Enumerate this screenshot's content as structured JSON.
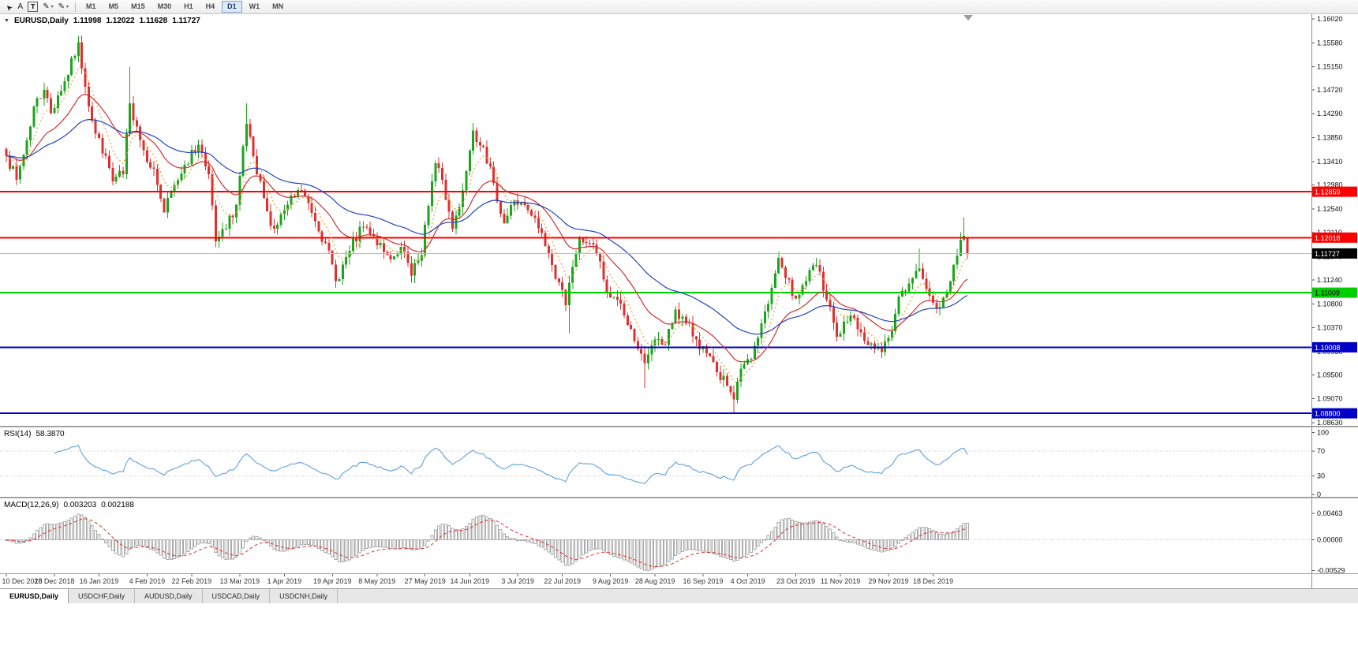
{
  "toolbar": {
    "tools": [
      {
        "name": "cursor-tool-icon",
        "glyph": "➤",
        "rotate": -135
      },
      {
        "name": "text-label-tool-icon",
        "glyph": "A"
      },
      {
        "name": "text-box-tool-icon",
        "glyph": "T",
        "boxed": true
      },
      {
        "name": "draw-tool-icon",
        "glyph": "✎",
        "caret": "▾"
      },
      {
        "name": "paint-tool-icon",
        "glyph": "✎",
        "caret": "▾"
      }
    ],
    "timeframes": [
      {
        "label": "M1"
      },
      {
        "label": "M5"
      },
      {
        "label": "M15"
      },
      {
        "label": "M30"
      },
      {
        "label": "H1"
      },
      {
        "label": "H4"
      },
      {
        "label": "D1",
        "active": true
      },
      {
        "label": "W1"
      },
      {
        "label": "MN"
      }
    ]
  },
  "chart": {
    "dropdown_icon": "▼",
    "symbol": "EURUSD,Daily",
    "open": "1.11998",
    "high": "1.12022",
    "low": "1.11628",
    "close": "1.11727"
  },
  "chart_data": {
    "type": "candlestick",
    "symbol": "EURUSD",
    "period": "Daily",
    "num_candles": 281,
    "first_candle_x": 8,
    "candle_spacing_px": 4.35,
    "seed": 7,
    "ylim": [
      1.0857,
      1.1611
    ],
    "y_ticks": [
      "1.16020",
      "1.15580",
      "1.15150",
      "1.14720",
      "1.14290",
      "1.13850",
      "1.13410",
      "1.12980",
      "1.12540",
      "1.12110",
      "1.11670",
      "1.11240",
      "1.10800",
      "1.10370",
      "1.09930",
      "1.09500",
      "1.09070",
      "1.08630"
    ],
    "colors": {
      "up": "#1CA41C",
      "down": "#DF3030",
      "axis_text": "#111111"
    },
    "last_candle": {
      "open": 1.11998,
      "high": 1.12022,
      "low": 1.11628,
      "close": 1.11727
    },
    "close_waypoints": [
      [
        0,
        1.1352
      ],
      [
        3,
        1.1308
      ],
      [
        6,
        1.138
      ],
      [
        8,
        1.1442
      ],
      [
        11,
        1.1472
      ],
      [
        13,
        1.143
      ],
      [
        15,
        1.1462
      ],
      [
        18,
        1.15
      ],
      [
        21,
        1.156
      ],
      [
        23,
        1.1478
      ],
      [
        26,
        1.1392
      ],
      [
        29,
        1.1352
      ],
      [
        31,
        1.1305
      ],
      [
        34,
        1.1318
      ],
      [
        36,
        1.1448
      ],
      [
        38,
        1.1405
      ],
      [
        40,
        1.1362
      ],
      [
        43,
        1.1328
      ],
      [
        46,
        1.1248
      ],
      [
        49,
        1.1298
      ],
      [
        52,
        1.1335
      ],
      [
        56,
        1.1372
      ],
      [
        59,
        1.1318
      ],
      [
        61,
        1.1195
      ],
      [
        64,
        1.1218
      ],
      [
        67,
        1.1262
      ],
      [
        70,
        1.141
      ],
      [
        73,
        1.1318
      ],
      [
        76,
        1.125
      ],
      [
        78,
        1.1218
      ],
      [
        82,
        1.1262
      ],
      [
        86,
        1.1288
      ],
      [
        90,
        1.1232
      ],
      [
        93,
        1.1192
      ],
      [
        96,
        1.1122
      ],
      [
        100,
        1.1178
      ],
      [
        104,
        1.1222
      ],
      [
        108,
        1.1188
      ],
      [
        112,
        1.1162
      ],
      [
        115,
        1.1185
      ],
      [
        118,
        1.1132
      ],
      [
        121,
        1.117
      ],
      [
        124,
        1.1305
      ],
      [
        125,
        1.1338
      ],
      [
        127,
        1.1308
      ],
      [
        130,
        1.1218
      ],
      [
        133,
        1.1288
      ],
      [
        136,
        1.1398
      ],
      [
        139,
        1.1368
      ],
      [
        142,
        1.1302
      ],
      [
        145,
        1.1228
      ],
      [
        148,
        1.127
      ],
      [
        152,
        1.1252
      ],
      [
        156,
        1.121
      ],
      [
        159,
        1.1152
      ],
      [
        161,
        1.112
      ],
      [
        163,
        1.1078
      ],
      [
        165,
        1.1148
      ],
      [
        167,
        1.1202
      ],
      [
        170,
        1.1192
      ],
      [
        172,
        1.1172
      ],
      [
        175,
        1.11
      ],
      [
        178,
        1.1088
      ],
      [
        181,
        1.1042
      ],
      [
        184,
        1.0998
      ],
      [
        186,
        1.0972
      ],
      [
        189,
        1.1015
      ],
      [
        192,
        1.1005
      ],
      [
        195,
        1.107
      ],
      [
        198,
        1.1045
      ],
      [
        201,
        1.1015
      ],
      [
        204,
        1.099
      ],
      [
        207,
        1.0955
      ],
      [
        210,
        1.093
      ],
      [
        212,
        1.0905
      ],
      [
        214,
        1.0962
      ],
      [
        217,
        1.098
      ],
      [
        220,
        1.1045
      ],
      [
        223,
        1.111
      ],
      [
        225,
        1.1165
      ],
      [
        227,
        1.1128
      ],
      [
        230,
        1.109
      ],
      [
        232,
        1.1115
      ],
      [
        236,
        1.1152
      ],
      [
        239,
        1.1088
      ],
      [
        242,
        1.102
      ],
      [
        245,
        1.1048
      ],
      [
        247,
        1.1055
      ],
      [
        249,
        1.1028
      ],
      [
        252,
        1.1008
      ],
      [
        255,
        1.0992
      ],
      [
        257,
        1.1018
      ],
      [
        259,
        1.1062
      ],
      [
        261,
        1.1105
      ],
      [
        264,
        1.1128
      ],
      [
        266,
        1.1145
      ],
      [
        268,
        1.1108
      ],
      [
        271,
        1.1072
      ],
      [
        273,
        1.1092
      ],
      [
        275,
        1.1122
      ],
      [
        277,
        1.1168
      ],
      [
        278,
        1.1198
      ],
      [
        279,
        1.1205
      ],
      [
        280,
        1.11727
      ]
    ],
    "wick_overrides": [
      {
        "idx": 21,
        "high": 1.157
      },
      {
        "idx": 36,
        "high": 1.1514
      },
      {
        "idx": 70,
        "high": 1.1448
      },
      {
        "idx": 96,
        "low": 1.111
      },
      {
        "idx": 136,
        "high": 1.1412
      },
      {
        "idx": 164,
        "low": 1.1027
      },
      {
        "idx": 186,
        "low": 1.0926
      },
      {
        "idx": 212,
        "low": 1.088
      },
      {
        "idx": 255,
        "low": 1.0981
      },
      {
        "idx": 266,
        "high": 1.1182
      },
      {
        "idx": 279,
        "high": 1.1239
      }
    ],
    "mas": [
      {
        "name": "ma-fast-dotted-orange",
        "period": 7,
        "color": "#E8A030",
        "dash": "2,3"
      },
      {
        "name": "ma-medium-red",
        "period": 20,
        "color": "#D03030",
        "dash": ""
      },
      {
        "name": "ma-slow-blue",
        "period": 48,
        "color": "#2244BB",
        "dash": ""
      }
    ],
    "hlines": [
      {
        "name": "hline-resistance-upper",
        "price": 1.12859,
        "label": "1.12859",
        "color": "#FF0000",
        "text_color": "#FFFFFF",
        "width": 2
      },
      {
        "name": "hline-resistance-lower",
        "price": 1.12018,
        "label": "1.12018",
        "color": "#FF0000",
        "text_color": "#FFFFFF",
        "width": 2
      },
      {
        "name": "hline-support-green",
        "price": 1.11009,
        "label": "1.11009",
        "color": "#00D000",
        "text_color": "#000000",
        "width": 2
      },
      {
        "name": "hline-support-blue-upper",
        "price": 1.10008,
        "label": "1.10008",
        "color": "#0000C8",
        "text_color": "#FFFFFF",
        "width": 2
      },
      {
        "name": "hline-support-blue-lower",
        "price": 1.088,
        "label": "1.08800",
        "color": "#0000C8",
        "text_color": "#FFFFFF",
        "width": 2
      }
    ],
    "current_price": {
      "price": 1.11727,
      "label": "1.11727",
      "badge_bg": "#000000",
      "badge_text": "#FFFFFF",
      "line_color": "#BBBBBB"
    },
    "x_labels": [
      {
        "idx": 0,
        "text": "10 Dec 2018"
      },
      {
        "idx": 14,
        "text": "28 Dec 2018"
      },
      {
        "idx": 27,
        "text": "16 Jan 2019"
      },
      {
        "idx": 41,
        "text": "4 Feb 2019"
      },
      {
        "idx": 54,
        "text": "22 Feb 2019"
      },
      {
        "idx": 68,
        "text": "13 Mar 2019"
      },
      {
        "idx": 81,
        "text": "1 Apr 2019"
      },
      {
        "idx": 95,
        "text": "19 Apr 2019"
      },
      {
        "idx": 108,
        "text": "8 May 2019"
      },
      {
        "idx": 122,
        "text": "27 May 2019"
      },
      {
        "idx": 135,
        "text": "14 Jun 2019"
      },
      {
        "idx": 149,
        "text": "3 Jul 2019"
      },
      {
        "idx": 162,
        "text": "22 Jul 2019"
      },
      {
        "idx": 176,
        "text": "9 Aug 2019"
      },
      {
        "idx": 189,
        "text": "28 Aug 2019"
      },
      {
        "idx": 203,
        "text": "16 Sep 2019"
      },
      {
        "idx": 216,
        "text": "4 Oct 2019"
      },
      {
        "idx": 230,
        "text": "23 Oct 2019"
      },
      {
        "idx": 243,
        "text": "11 Nov 2019"
      },
      {
        "idx": 257,
        "text": "29 Nov 2019"
      },
      {
        "idx": 270,
        "text": "18 Dec 2019"
      }
    ],
    "rsi": {
      "name_label": "RSI(14)",
      "value": "58.3870",
      "period": 14,
      "color": "#5FA0DC",
      "levels": [
        100,
        70,
        30,
        0
      ],
      "dotted_levels": [
        70,
        30
      ],
      "ylim": [
        -4,
        108
      ]
    },
    "macd": {
      "name_label": "MACD(12,26,9)",
      "value_main": "0.003203",
      "value_signal": "0.002188",
      "fast": 12,
      "slow": 26,
      "signal": 9,
      "hist_color": "#AAAAAA",
      "signal_color": "#E03030",
      "ticks": [
        "0.00463",
        "0.00000",
        "-0.00529"
      ],
      "ylim": [
        -0.0058,
        0.0072
      ]
    }
  },
  "tabs": [
    {
      "label": "EURUSD,Daily",
      "active": true
    },
    {
      "label": "USDCHF,Daily"
    },
    {
      "label": "AUDUSD,Daily"
    },
    {
      "label": "USDCAD,Daily"
    },
    {
      "label": "USDCNH,Daily"
    }
  ]
}
